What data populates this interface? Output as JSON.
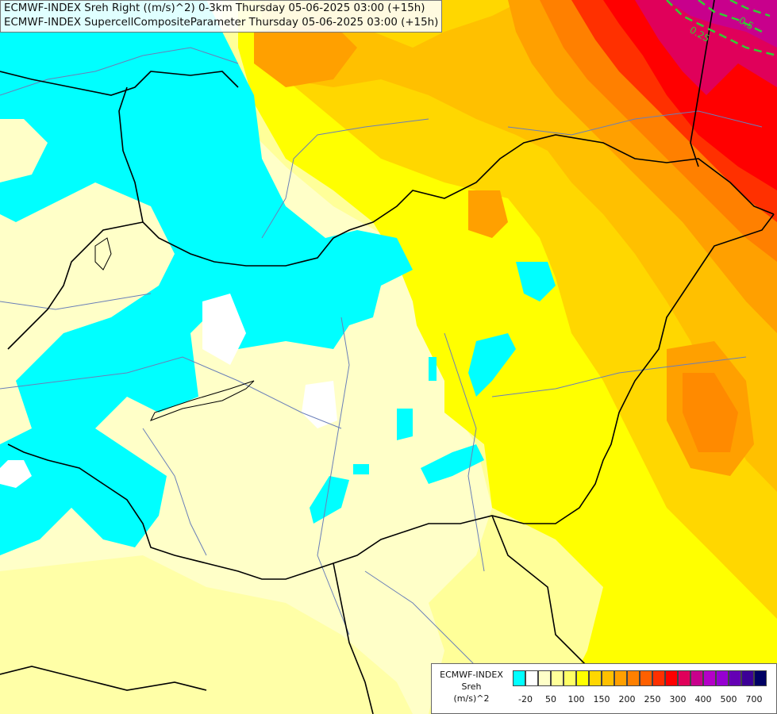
{
  "header": {
    "line1": "ECMWF-INDEX Sreh Right ((m/s)^2) 0-3km Thursday 05-06-2025 03:00 (+15h)",
    "line2": "ECMWF-INDEX SupercellCompositeParameter Thursday 05-06-2025 03:00 (+15h)"
  },
  "legend": {
    "title_line1": "ECMWF-INDEX",
    "title_line2": "Sreh",
    "title_line3": "(m/s)^2",
    "swatch_colors": [
      "#00ffff",
      "#ffffff",
      "#ffffc8",
      "#ffff99",
      "#ffff66",
      "#ffff00",
      "#ffd700",
      "#ffc000",
      "#ffa000",
      "#ff8000",
      "#ff6000",
      "#ff3000",
      "#ff0000",
      "#e0005a",
      "#c8008c",
      "#b400c8",
      "#9600d2",
      "#6400b4",
      "#3c0096",
      "#000064"
    ],
    "ticks": [
      "-20",
      "50",
      "100",
      "150",
      "200",
      "250",
      "300",
      "400",
      "500",
      "700"
    ]
  },
  "overlay": {
    "scp_contour_labels": [
      "0.25",
      "0.5"
    ],
    "scp_contour_color": "#33cc33"
  },
  "map_colors": {
    "border": "#000000",
    "river": "#6a7fb8"
  }
}
